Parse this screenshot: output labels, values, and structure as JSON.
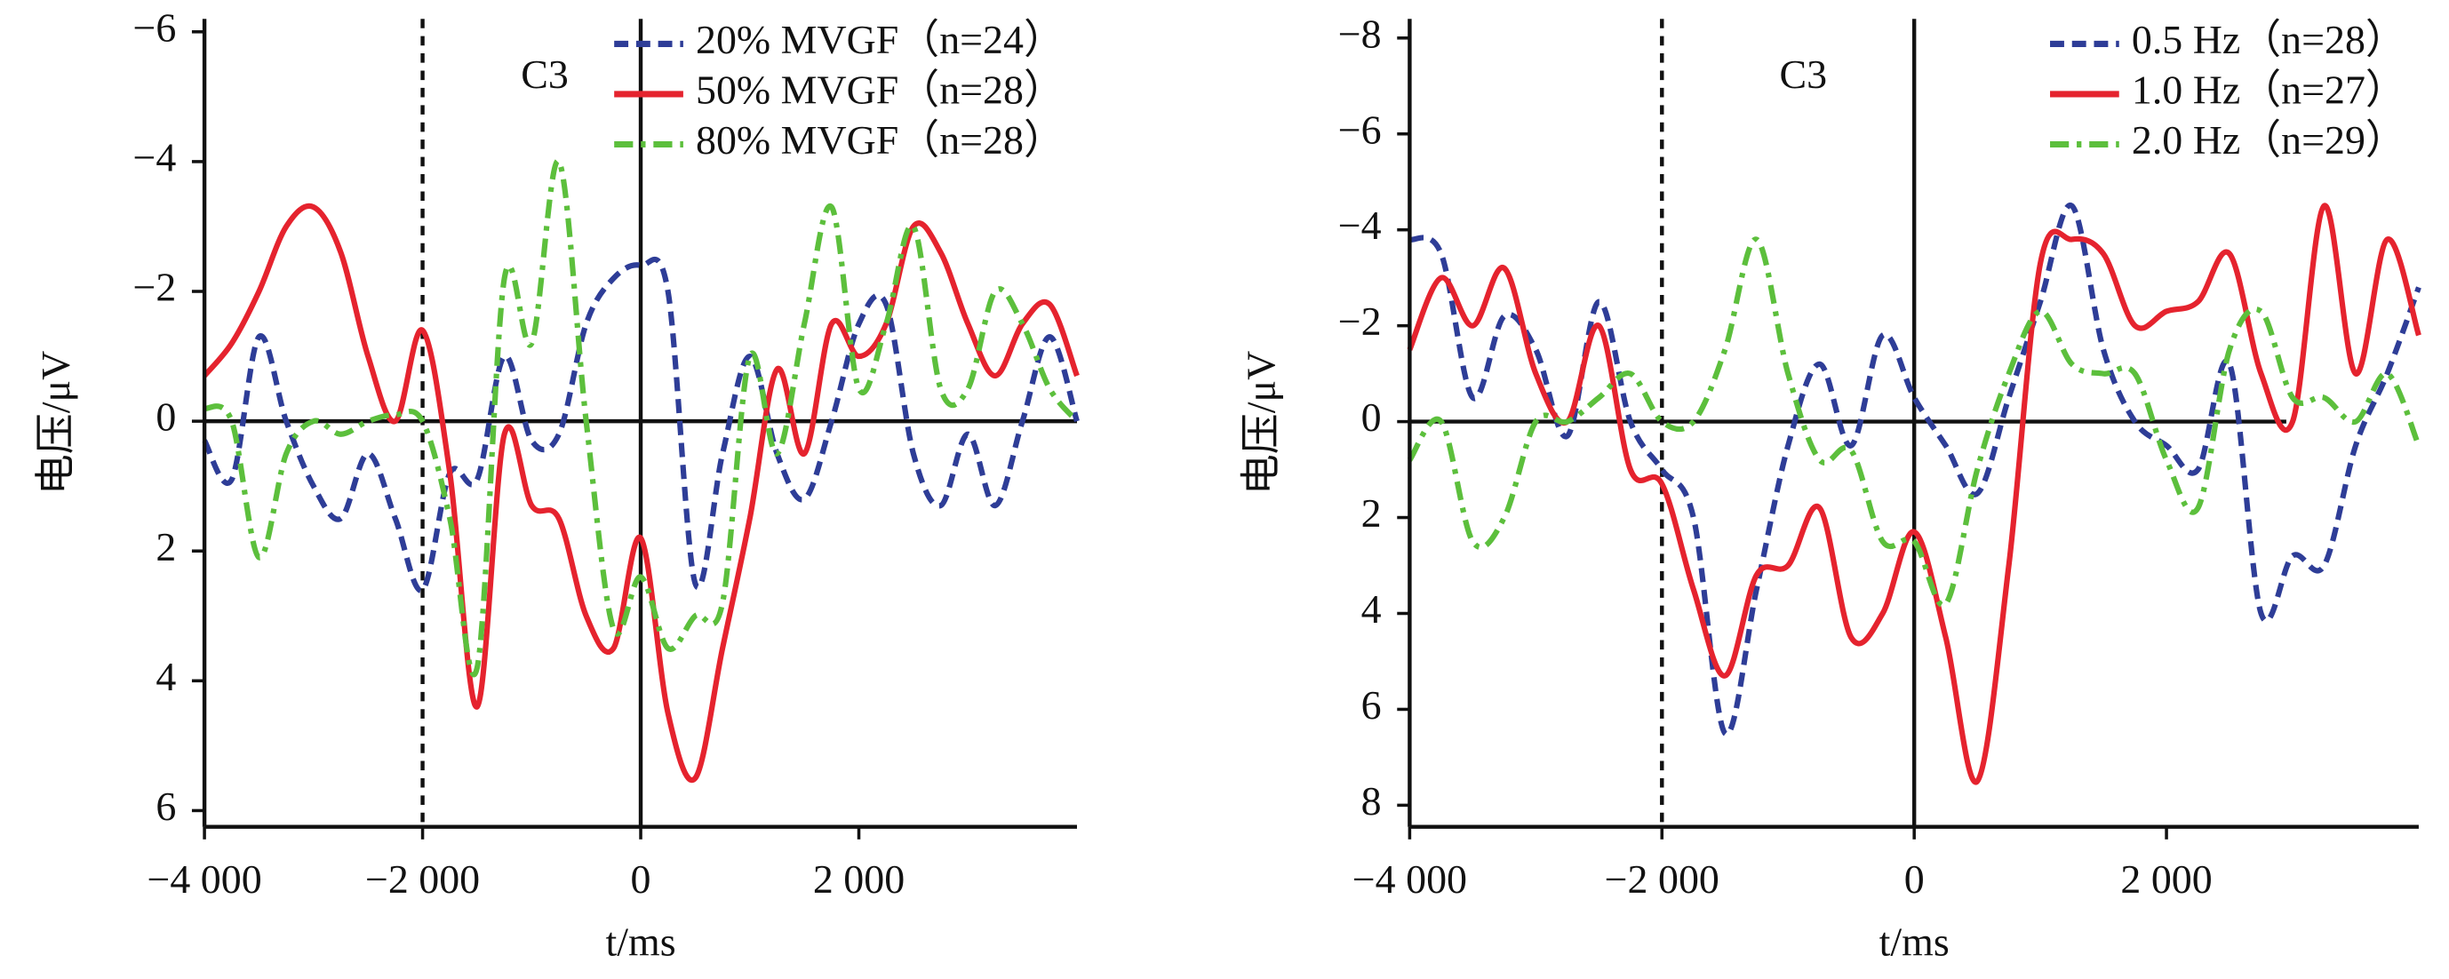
{
  "chart_data": [
    {
      "type": "line",
      "annotation": "C3",
      "xlabel": "t/ms",
      "ylabel": "电压/μV",
      "x": [
        -4000,
        -3750,
        -3500,
        -3250,
        -3000,
        -2750,
        -2500,
        -2250,
        -2000,
        -1750,
        -1500,
        -1250,
        -1000,
        -750,
        -500,
        -250,
        0,
        250,
        500,
        750,
        1000,
        1250,
        1500,
        1750,
        2000,
        2250,
        2500,
        2750,
        3000,
        3250,
        3500,
        3750,
        4000
      ],
      "xlim": [
        -4000,
        4000
      ],
      "xticks": [
        {
          "value": -4000,
          "label": "−4 000"
        },
        {
          "value": -2000,
          "label": "−2 000"
        },
        0,
        {
          "value": 2000,
          "label": "2 000"
        }
      ],
      "ylim": [
        -6.2,
        6.25
      ],
      "y_inverted": true,
      "yticks": [
        {
          "value": -6,
          "label": "−6"
        },
        {
          "value": -4,
          "label": "−4"
        },
        {
          "value": -2,
          "label": "−2"
        },
        0,
        2,
        4,
        6
      ],
      "vlines": [
        {
          "x": -2000,
          "style": "dashed"
        },
        {
          "x": 0,
          "style": "solid"
        }
      ],
      "hline": {
        "y": 0,
        "xmax": 4000
      },
      "legend": "upper right",
      "series": [
        {
          "name": "20% MVGF（n=24）",
          "color": "#2e3d97",
          "style": "dashed",
          "values": [
            0.3,
            0.9,
            -1.3,
            0,
            1.0,
            1.5,
            0.5,
            1.5,
            2.6,
            0.8,
            0.9,
            -1.0,
            0.3,
            0.2,
            -1.5,
            -2.2,
            -2.4,
            -2.0,
            2.5,
            0.5,
            -1.0,
            0.5,
            1.2,
            0,
            -1.5,
            -1.8,
            0.5,
            1.3,
            0.2,
            1.3,
            0,
            -1.3,
            0
          ]
        },
        {
          "name": "50% MVGF（n=28）",
          "color": "#e5232e",
          "style": "solid",
          "values": [
            -0.7,
            -1.2,
            -2.0,
            -3.0,
            -3.3,
            -2.6,
            -1.0,
            0,
            -1.4,
            0.8,
            4.4,
            0.2,
            1.3,
            1.5,
            3.0,
            3.5,
            1.8,
            4.5,
            5.5,
            3.5,
            1.5,
            -0.8,
            0.5,
            -1.5,
            -1.0,
            -1.5,
            -3.0,
            -2.6,
            -1.5,
            -0.7,
            -1.5,
            -1.8,
            -0.7
          ]
        },
        {
          "name": "80% MVGF（n=28）",
          "color": "#5cbf3c",
          "style": "dashdot",
          "values": [
            -0.2,
            0,
            2.1,
            0.5,
            0,
            0.2,
            0,
            -0.1,
            0,
            1.5,
            3.8,
            -2.2,
            -1.2,
            -4.0,
            0,
            3.2,
            2.4,
            3.5,
            3.0,
            2.8,
            -1.0,
            0.5,
            -1.5,
            -3.3,
            -0.5,
            -1.5,
            -3.0,
            -0.5,
            -0.5,
            -2.0,
            -1.5,
            -0.5,
            0
          ]
        }
      ]
    },
    {
      "type": "line",
      "annotation": "C3",
      "xlabel": "t/ms",
      "ylabel": "电压/μV",
      "x": [
        -4000,
        -3750,
        -3500,
        -3250,
        -3000,
        -2750,
        -2500,
        -2250,
        -2000,
        -1750,
        -1500,
        -1250,
        -1000,
        -750,
        -500,
        -250,
        0,
        250,
        500,
        750,
        1000,
        1250,
        1500,
        1750,
        2000,
        2250,
        2500,
        2750,
        3000,
        3250,
        3500,
        3750,
        4000
      ],
      "xlim": [
        -4000,
        4000
      ],
      "xticks": [
        {
          "value": -4000,
          "label": "−4 000"
        },
        {
          "value": -2000,
          "label": "−2 000"
        },
        0,
        {
          "value": 2000,
          "label": "2 000"
        }
      ],
      "ylim": [
        -8.4,
        8.45
      ],
      "y_inverted": true,
      "yticks": [
        {
          "value": -8,
          "label": "−8"
        },
        {
          "value": -6,
          "label": "−6"
        },
        {
          "value": -4,
          "label": "−4"
        },
        {
          "value": -2,
          "label": "−2"
        },
        0,
        2,
        4,
        6,
        8
      ],
      "vlines": [
        {
          "x": -2000,
          "style": "dashed"
        },
        {
          "x": 0,
          "style": "solid"
        }
      ],
      "hline": {
        "y": 0,
        "xmax": 2950
      },
      "legend": "upper right",
      "series": [
        {
          "name": "0.5 Hz（n=28）",
          "color": "#2e3d97",
          "style": "dashed",
          "values": [
            -3.8,
            -3.5,
            -0.5,
            -2.2,
            -1.5,
            0.3,
            -2.5,
            0,
            1.0,
            2.0,
            6.5,
            3.5,
            0.5,
            -1.2,
            0.5,
            -1.8,
            -0.5,
            0.5,
            1.5,
            -0.5,
            -2.5,
            -4.5,
            -1.5,
            0,
            0.5,
            1.0,
            -1.2,
            4.0,
            2.8,
            3.0,
            0.5,
            -1.0,
            -2.8
          ]
        },
        {
          "name": "1.0 Hz（n=27）",
          "color": "#e5232e",
          "style": "solid",
          "values": [
            -1.5,
            -3.0,
            -2.0,
            -3.2,
            -1.0,
            0,
            -2.0,
            1.0,
            1.3,
            3.5,
            5.3,
            3.2,
            3.0,
            1.8,
            4.5,
            4.0,
            2.3,
            4.5,
            7.5,
            3.0,
            -3.3,
            -3.8,
            -3.5,
            -2.0,
            -2.3,
            -2.5,
            -3.5,
            -1.0,
            0,
            -4.5,
            -1.0,
            -3.8,
            -1.8
          ]
        },
        {
          "name": "2.0 Hz（n=29）",
          "color": "#5cbf3c",
          "style": "dashdot",
          "values": [
            0.8,
            0,
            2.5,
            2.0,
            0,
            0,
            -0.5,
            -1.0,
            0,
            0,
            -1.5,
            -3.8,
            -1.0,
            0.8,
            0.6,
            2.5,
            2.5,
            3.8,
            1.0,
            -1.0,
            -2.3,
            -1.2,
            -1.0,
            -1.0,
            0.8,
            1.8,
            -1.5,
            -2.3,
            -0.5,
            -0.5,
            0,
            -1.0,
            0.5
          ]
        }
      ]
    }
  ]
}
